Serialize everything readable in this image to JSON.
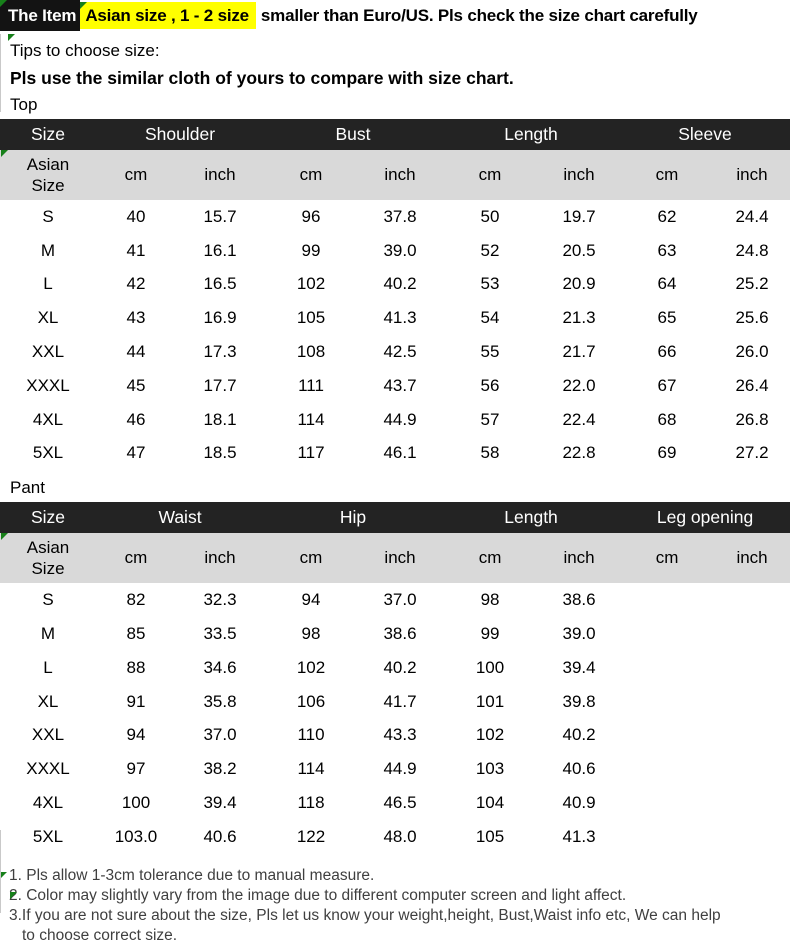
{
  "banner": {
    "prefix": "The Item",
    "highlight": "Asian size , 1 - 2 size",
    "suffix": "smaller than Euro/US. Pls check the size chart carefully"
  },
  "intro": {
    "tips_label": "Tips to choose size:",
    "compare_note": "Pls use the similar cloth of yours to compare with size chart."
  },
  "top_table": {
    "section_label": "Top",
    "column_groups": [
      "Size",
      "Shoulder",
      "Bust",
      "Length",
      "Sleeve"
    ],
    "subheader": {
      "size": "Asian Size",
      "units": [
        "cm",
        "inch",
        "cm",
        "inch",
        "cm",
        "inch",
        "cm",
        "inch"
      ]
    },
    "rows": [
      [
        "S",
        "40",
        "15.7",
        "96",
        "37.8",
        "50",
        "19.7",
        "62",
        "24.4"
      ],
      [
        "M",
        "41",
        "16.1",
        "99",
        "39.0",
        "52",
        "20.5",
        "63",
        "24.8"
      ],
      [
        "L",
        "42",
        "16.5",
        "102",
        "40.2",
        "53",
        "20.9",
        "64",
        "25.2"
      ],
      [
        "XL",
        "43",
        "16.9",
        "105",
        "41.3",
        "54",
        "21.3",
        "65",
        "25.6"
      ],
      [
        "XXL",
        "44",
        "17.3",
        "108",
        "42.5",
        "55",
        "21.7",
        "66",
        "26.0"
      ],
      [
        "XXXL",
        "45",
        "17.7",
        "111",
        "43.7",
        "56",
        "22.0",
        "67",
        "26.4"
      ],
      [
        "4XL",
        "46",
        "18.1",
        "114",
        "44.9",
        "57",
        "22.4",
        "68",
        "26.8"
      ],
      [
        "5XL",
        "47",
        "18.5",
        "117",
        "46.1",
        "58",
        "22.8",
        "69",
        "27.2"
      ]
    ]
  },
  "pant_table": {
    "section_label": "Pant",
    "column_groups": [
      "Size",
      "Waist",
      "Hip",
      "Length",
      "Leg opening"
    ],
    "subheader": {
      "size": "Asian Size",
      "units": [
        "cm",
        "inch",
        "cm",
        "inch",
        "cm",
        "inch",
        "cm",
        "inch"
      ]
    },
    "rows": [
      [
        "S",
        "82",
        "32.3",
        "94",
        "37.0",
        "98",
        "38.6",
        "",
        ""
      ],
      [
        "M",
        "85",
        "33.5",
        "98",
        "38.6",
        "99",
        "39.0",
        "",
        ""
      ],
      [
        "L",
        "88",
        "34.6",
        "102",
        "40.2",
        "100",
        "39.4",
        "",
        ""
      ],
      [
        "XL",
        "91",
        "35.8",
        "106",
        "41.7",
        "101",
        "39.8",
        "",
        ""
      ],
      [
        "XXL",
        "94",
        "37.0",
        "110",
        "43.3",
        "102",
        "40.2",
        "",
        ""
      ],
      [
        "XXXL",
        "97",
        "38.2",
        "114",
        "44.9",
        "103",
        "40.6",
        "",
        ""
      ],
      [
        "4XL",
        "100",
        "39.4",
        "118",
        "46.5",
        "104",
        "40.9",
        "",
        ""
      ],
      [
        "5XL",
        "103.0",
        "40.6",
        "122",
        "48.0",
        "105",
        "41.3",
        "",
        ""
      ]
    ]
  },
  "notes": {
    "line1": "1. Pls allow 1-3cm tolerance due to manual measure.",
    "line2": "2. Color may slightly vary from the image due to different computer screen and light affect.",
    "line3": "3.If you are not sure about the size, Pls let us know your weight,height, Bust,Waist info etc, We can help",
    "line4": "to choose correct size."
  },
  "colors": {
    "banner_chip_bg": "#131313",
    "highlight_bg": "#ffff00",
    "table_header_bg": "#232323",
    "unit_row_bg": "#d9d9d9",
    "note_text": "#3f3f3f",
    "comment_marker_green": "#17801a"
  }
}
